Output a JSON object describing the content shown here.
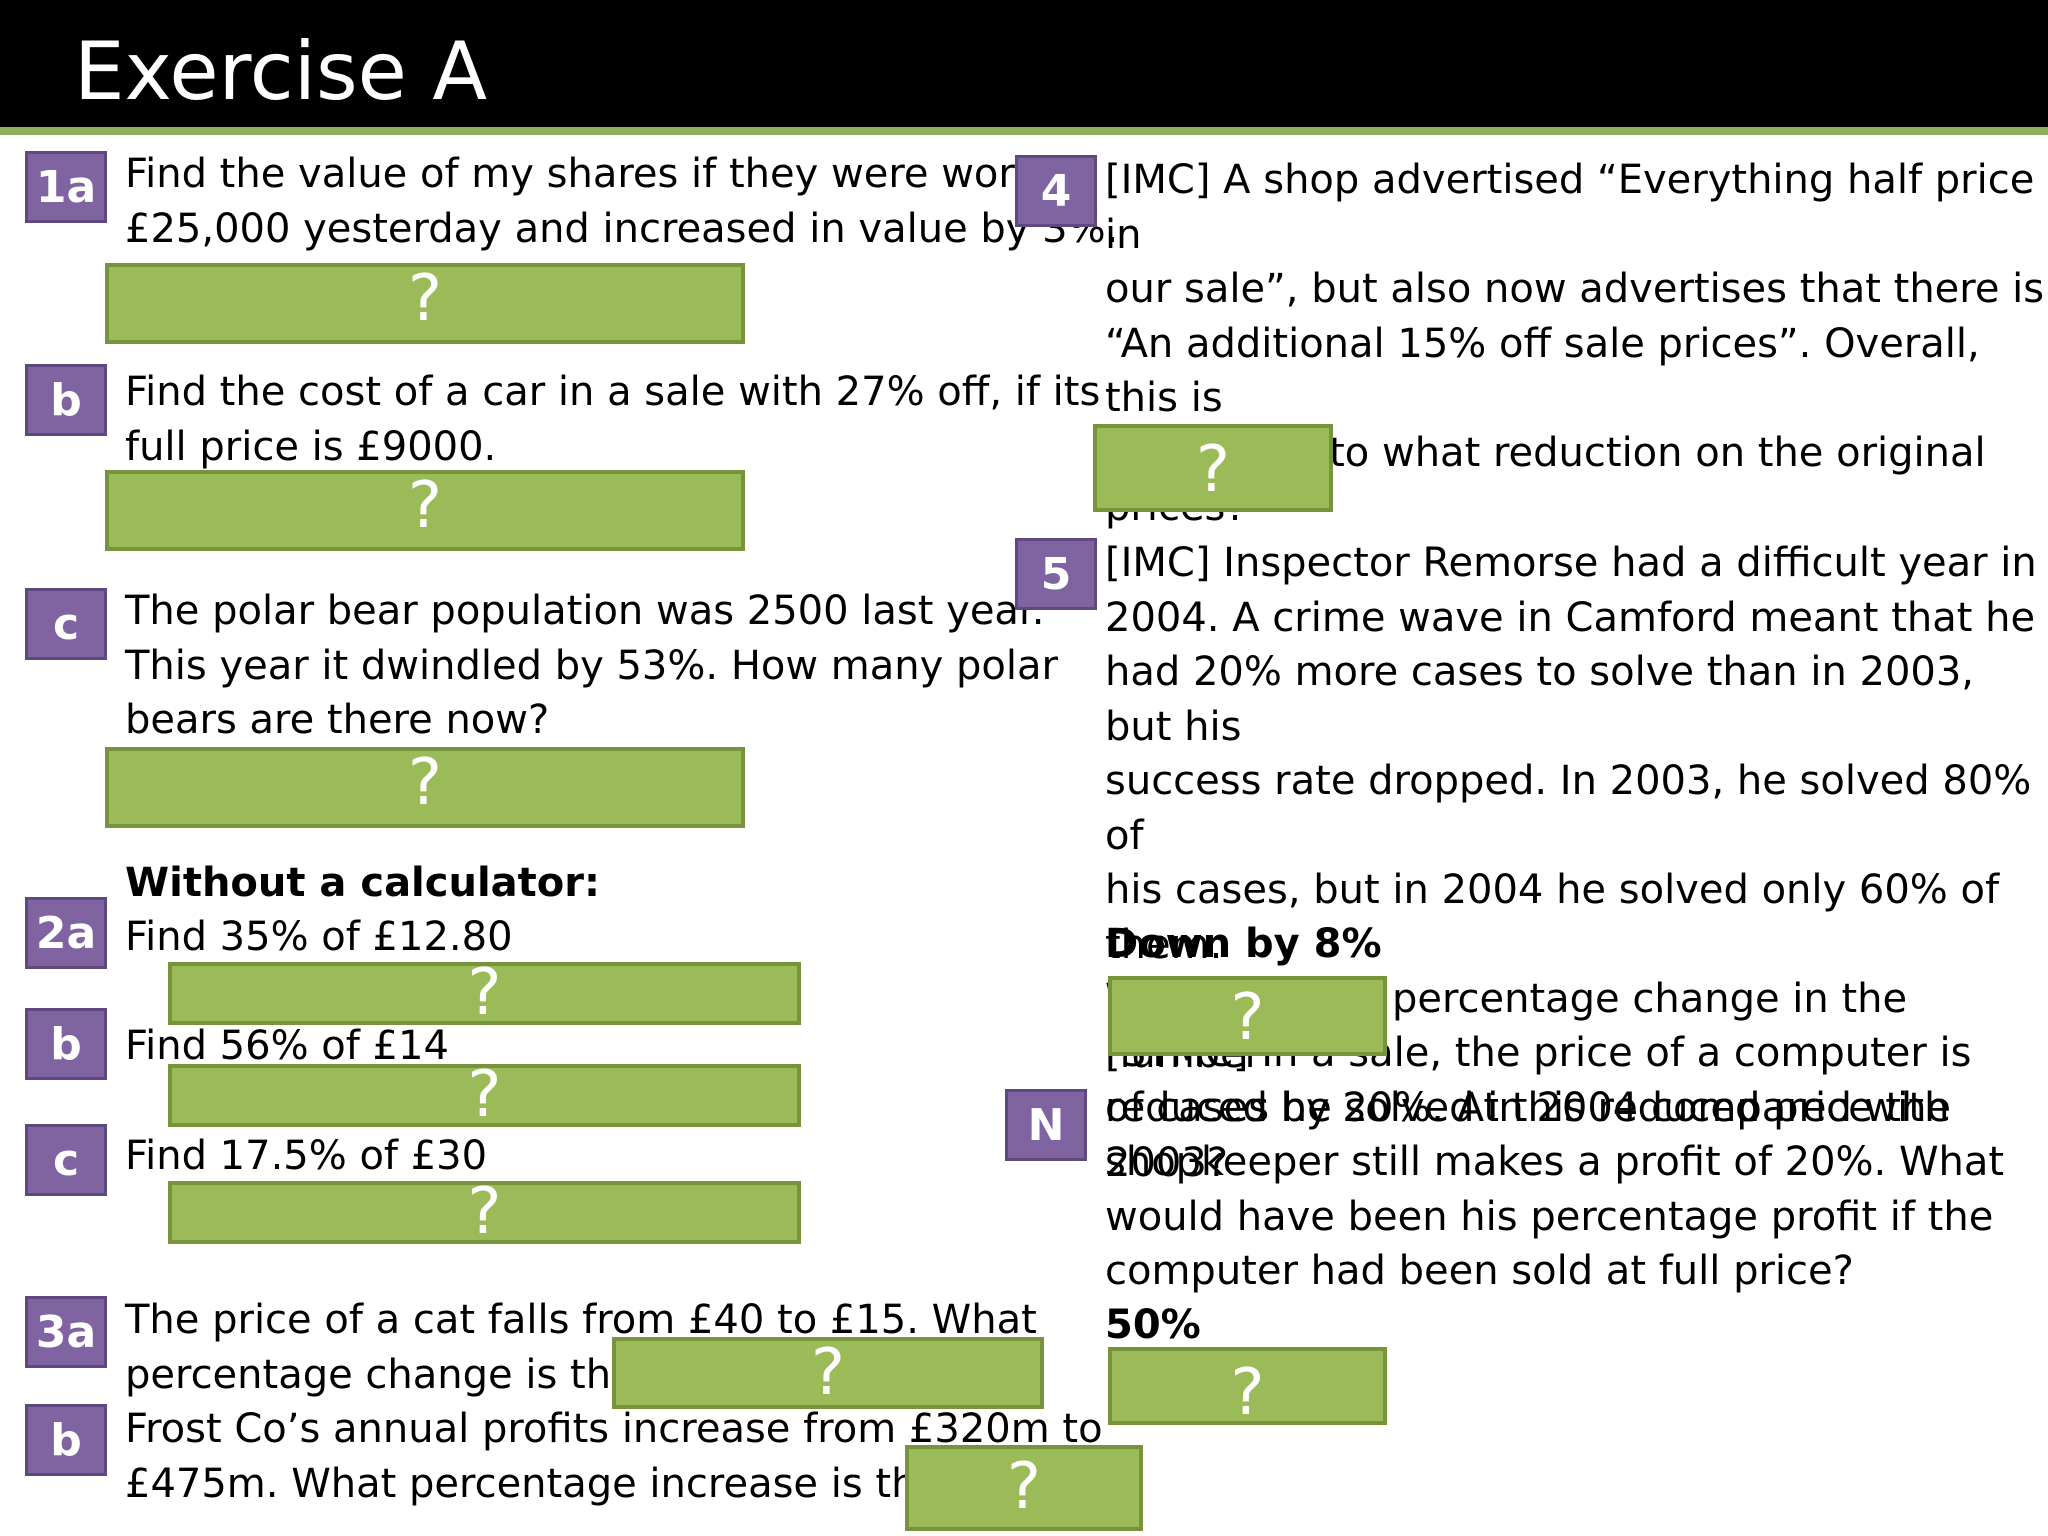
{
  "title": "Exercise A",
  "questions": {
    "q1a": {
      "badge": "1a",
      "text": "Find the value of my shares if they were worth\n£25,000 yesterday and increased in value by 3%."
    },
    "q1b": {
      "badge": "b",
      "text": "Find the cost of a car in a sale with 27% off, if its\nfull price is £9000."
    },
    "q1c": {
      "badge": "c",
      "text": "The polar bear population was 2500 last year.\nThis year it dwindled by 53%. How many polar\nbears are there now?"
    },
    "q2_heading": "Without a calculator:",
    "q2a": {
      "badge": "2a",
      "text": "Find 35% of £12.80"
    },
    "q2b": {
      "badge": "b",
      "text": "Find 56% of £14"
    },
    "q2c": {
      "badge": "c",
      "text": "Find 17.5% of £30"
    },
    "q3a": {
      "badge": "3a",
      "text": "The price of a cat falls from £40 to £15. What\npercentage change is this?"
    },
    "q3b": {
      "badge": "b",
      "text": "Frost Co’s annual profits increase from £320m to\n£475m. What percentage increase is this?"
    },
    "q4": {
      "badge": "4",
      "text": "[IMC] A shop advertised “Everything half price in\nour sale”, but also now advertises that there is\n“An additional 15% off sale prices”. Overall, this is\nequivalent to what reduction on the original\nprices?"
    },
    "q5": {
      "badge": "5",
      "text": "[IMC] Inspector Remorse had a difficult year in\n2004. A crime wave in Camford meant that he\nhad 20% more cases to solve than in 2003, but his\nsuccess rate dropped. In 2003, he solved 80% of\nhis cases, but in 2004 he solved only 60% of them.\nWhat was the percentage change in the number\nof cases he solved in 2004 compared with 2003?",
      "answer": "Down by 8%"
    },
    "qN": {
      "badge": "N",
      "text": "[STMC] In a sale, the price of a computer is\nreduced by 20%. At this reduced price the\nshopkeeper still makes a profit of 20%. What\nwould have been his percentage profit if the\ncomputer had been sold at full price?",
      "answer": "50%"
    }
  },
  "reveal_label": "?",
  "colors": {
    "badge": "#8064a2",
    "answer_box": "#9bbb59",
    "accent_line": "#8db05a"
  }
}
